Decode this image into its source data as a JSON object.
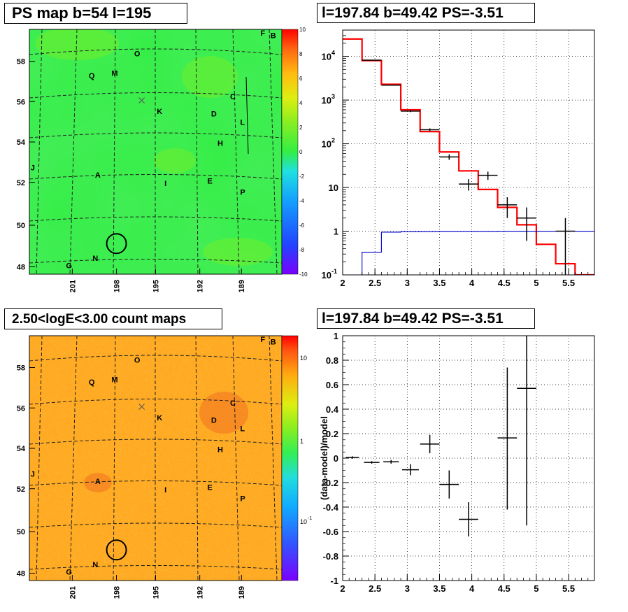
{
  "titles": {
    "map_top": "PS map b=54 l=195",
    "spec_top": "l=197.84 b=49.42 PS=-3.51",
    "map_bottom": "2.50<logE<3.00 count maps",
    "spec_bottom": "l=197.84 b=49.42 PS=-3.51"
  },
  "map_labels": {
    "y_ticks": [
      "58",
      "56",
      "54",
      "52",
      "50",
      "48"
    ],
    "x_ticks": [
      "201",
      "198",
      "195",
      "192",
      "189"
    ],
    "sources": [
      {
        "t": "F",
        "u": 0.915,
        "v": 0.025
      },
      {
        "t": "B",
        "u": 0.955,
        "v": 0.035
      },
      {
        "t": "O",
        "u": 0.415,
        "v": 0.11
      },
      {
        "t": "Q",
        "u": 0.235,
        "v": 0.2
      },
      {
        "t": "M",
        "u": 0.325,
        "v": 0.19
      },
      {
        "t": "C",
        "u": 0.795,
        "v": 0.285
      },
      {
        "t": "K",
        "u": 0.505,
        "v": 0.345
      },
      {
        "t": "D",
        "u": 0.72,
        "v": 0.355
      },
      {
        "t": "L",
        "u": 0.835,
        "v": 0.39
      },
      {
        "t": "H",
        "u": 0.745,
        "v": 0.475
      },
      {
        "t": "J",
        "u": 0.005,
        "v": 0.575
      },
      {
        "t": "A",
        "u": 0.26,
        "v": 0.605
      },
      {
        "t": "I",
        "u": 0.535,
        "v": 0.64
      },
      {
        "t": "E",
        "u": 0.705,
        "v": 0.63
      },
      {
        "t": "P",
        "u": 0.835,
        "v": 0.675
      },
      {
        "t": "N",
        "u": 0.25,
        "v": 0.945
      },
      {
        "t": "G",
        "u": 0.145,
        "v": 0.975
      }
    ],
    "cross": {
      "u": 0.445,
      "v": 0.29
    },
    "circle": {
      "u": 0.345,
      "v": 0.875
    }
  },
  "colorbar_top": {
    "min": -10,
    "max": 10,
    "labels": [
      "10",
      "8",
      "6",
      "4",
      "2",
      "0",
      "-2",
      "-4",
      "-6",
      "-8",
      "-10"
    ]
  },
  "colorbar_bottom": {
    "labels": [
      "10",
      "1",
      "10"
    ],
    "exp": "-1"
  },
  "colors": {
    "data": "#000000",
    "model_total": "#ff0000",
    "model_bkg": "#0000cc",
    "map_green": "#33ee44",
    "map_orange": "#ffaa22"
  },
  "chart_data": [
    {
      "type": "heatmap",
      "title": "PS map b=54 l=195",
      "xlabel": "",
      "ylabel": "",
      "zrange": [
        -10,
        10
      ],
      "xticks": [
        "201",
        "198",
        "195",
        "192",
        "189"
      ],
      "yticks": [
        "58",
        "56",
        "54",
        "52",
        "50",
        "48"
      ]
    },
    {
      "type": "line",
      "title": "l=197.84 b=49.42 PS=-3.51",
      "y_scale": "log",
      "xlim": [
        2.0,
        5.9
      ],
      "ylim": [
        0.1,
        40000
      ],
      "x_tick_labels": [
        "2",
        "2.5",
        "3",
        "3.5",
        "4",
        "4.5",
        "5",
        "5.5"
      ],
      "y_tick_labels": [
        "10^-1",
        "1",
        "10",
        "10^2",
        "10^3",
        "10^4"
      ],
      "bin_edges": [
        2.0,
        2.3,
        2.6,
        2.9,
        3.2,
        3.5,
        3.8,
        4.1,
        4.4,
        4.7,
        5.0,
        5.3,
        5.6,
        5.9
      ],
      "series": [
        {
          "values": [
            25000,
            8000,
            2300,
            600,
            190,
            65,
            24,
            9,
            3.5,
            1.4,
            0.5,
            0.18,
            0.1
          ]
        },
        {
          "values": [
            0.1,
            0.33,
            0.95,
            0.97,
            0.98,
            0.99,
            0.99,
            0.99,
            1.0,
            1.0,
            1.0,
            1.0,
            1.0
          ]
        }
      ],
      "points": [
        {
          "x": 2.45,
          "y": 8200,
          "xerr": 0.15,
          "ylo": 8000,
          "yhi": 8400
        },
        {
          "x": 2.75,
          "y": 2200,
          "xerr": 0.15,
          "ylo": 2150,
          "yhi": 2250
        },
        {
          "x": 3.05,
          "y": 560,
          "xerr": 0.15,
          "ylo": 530,
          "yhi": 590
        },
        {
          "x": 3.35,
          "y": 210,
          "xerr": 0.15,
          "ylo": 195,
          "yhi": 225
        },
        {
          "x": 3.65,
          "y": 50,
          "xerr": 0.15,
          "ylo": 43,
          "yhi": 57
        },
        {
          "x": 3.95,
          "y": 12,
          "xerr": 0.15,
          "ylo": 8.5,
          "yhi": 15.5
        },
        {
          "x": 4.25,
          "y": 19,
          "xerr": 0.15,
          "ylo": 15,
          "yhi": 23
        },
        {
          "x": 4.55,
          "y": 4,
          "xerr": 0.15,
          "ylo": 2.0,
          "yhi": 6.0
        },
        {
          "x": 4.85,
          "y": 2,
          "xerr": 0.15,
          "ylo": 0.6,
          "yhi": 3.5
        },
        {
          "x": 5.45,
          "y": 1.0,
          "xerr": 0.15,
          "ylo": 0.1,
          "yhi": 2.0
        }
      ]
    },
    {
      "type": "heatmap",
      "title": "2.50<logE<3.00 count maps",
      "xlabel": "",
      "ylabel": "",
      "z_scale": "log",
      "xticks": [
        "201",
        "198",
        "195",
        "192",
        "189"
      ],
      "yticks": [
        "58",
        "56",
        "54",
        "52",
        "50",
        "48"
      ]
    },
    {
      "type": "scatter",
      "title": "l=197.84 b=49.42 PS=-3.51",
      "ylabel": "(data-model)/model",
      "xlim": [
        2.0,
        5.9
      ],
      "ylim": [
        -1.0,
        1.0
      ],
      "x_tick_labels": [
        "2",
        "2.5",
        "3",
        "3.5",
        "4",
        "4.5",
        "5",
        "5.5"
      ],
      "y_tick_labels": [
        "1",
        "0.8",
        "0.6",
        "0.4",
        "0.2",
        "0",
        "-0.2",
        "-0.4",
        "-0.6",
        "-0.8",
        "-1"
      ],
      "points": [
        {
          "x": 2.15,
          "y": 0.005,
          "xerr": 0.1,
          "ylo": -0.005,
          "yhi": 0.015
        },
        {
          "x": 2.45,
          "y": -0.035,
          "xerr": 0.12,
          "ylo": -0.045,
          "yhi": -0.025
        },
        {
          "x": 2.75,
          "y": -0.03,
          "xerr": 0.12,
          "ylo": -0.045,
          "yhi": -0.015
        },
        {
          "x": 3.05,
          "y": -0.095,
          "xerr": 0.13,
          "ylo": -0.14,
          "yhi": -0.05
        },
        {
          "x": 3.35,
          "y": 0.115,
          "xerr": 0.15,
          "ylo": 0.04,
          "yhi": 0.19
        },
        {
          "x": 3.65,
          "y": -0.215,
          "xerr": 0.15,
          "ylo": -0.33,
          "yhi": -0.1
        },
        {
          "x": 3.95,
          "y": -0.5,
          "xerr": 0.15,
          "ylo": -0.64,
          "yhi": -0.36
        },
        {
          "x": 4.55,
          "y": 0.165,
          "xerr": 0.15,
          "ylo": -0.42,
          "yhi": 0.74
        },
        {
          "x": 4.85,
          "y": 0.57,
          "xerr": 0.15,
          "ylo": -0.55,
          "yhi": 1.0
        }
      ]
    }
  ]
}
